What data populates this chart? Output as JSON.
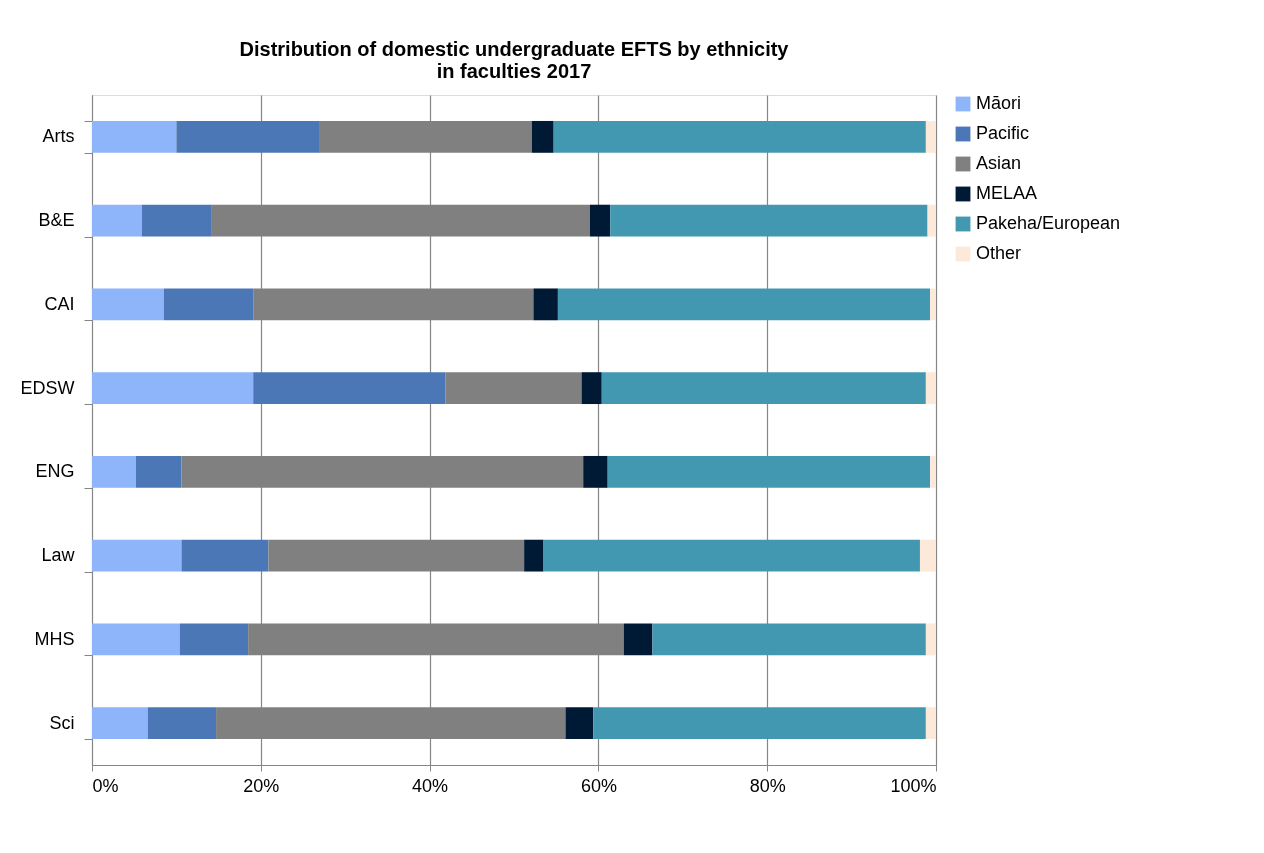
{
  "chart_data": {
    "type": "bar",
    "orientation": "horizontal",
    "stacked": true,
    "title": "Distribution of domestic undergraduate EFTS by ethnicity in faculties 2017",
    "categories": [
      "Arts",
      "B&E",
      "CAI",
      "EDSW",
      "ENG",
      "Law",
      "MHS",
      "Sci"
    ],
    "series": [
      {
        "name": "Māori",
        "color": "#8eb4f9",
        "values": [
          10.0,
          5.9,
          8.5,
          19.1,
          5.2,
          10.6,
          10.4,
          6.6
        ]
      },
      {
        "name": "Pacific",
        "color": "#4c77b6",
        "values": [
          17.0,
          8.3,
          10.6,
          22.8,
          5.4,
          10.3,
          8.1,
          8.1
        ]
      },
      {
        "name": "Asian",
        "color": "#808080",
        "values": [
          25.1,
          44.8,
          33.2,
          16.1,
          47.6,
          30.3,
          44.5,
          41.4
        ]
      },
      {
        "name": "MELAA",
        "color": "#001a35",
        "values": [
          2.6,
          2.4,
          2.9,
          2.4,
          2.9,
          2.3,
          3.4,
          3.3
        ]
      },
      {
        "name": "Pakeha/European",
        "color": "#4298b0",
        "values": [
          44.1,
          37.6,
          44.1,
          38.4,
          38.2,
          44.6,
          32.4,
          39.4
        ]
      },
      {
        "name": "Other",
        "color": "#fde9d9",
        "values": [
          1.2,
          1.0,
          0.7,
          1.2,
          0.7,
          1.9,
          1.2,
          1.2
        ]
      }
    ],
    "xlim": [
      0,
      100
    ],
    "xticks": [
      {
        "value": 0,
        "label": "0%"
      },
      {
        "value": 20,
        "label": "20%"
      },
      {
        "value": 40,
        "label": "40%"
      },
      {
        "value": 60,
        "label": "60%"
      },
      {
        "value": 80,
        "label": "80%"
      },
      {
        "value": 100,
        "label": "100%"
      }
    ],
    "grid": "x",
    "legend": "right"
  }
}
